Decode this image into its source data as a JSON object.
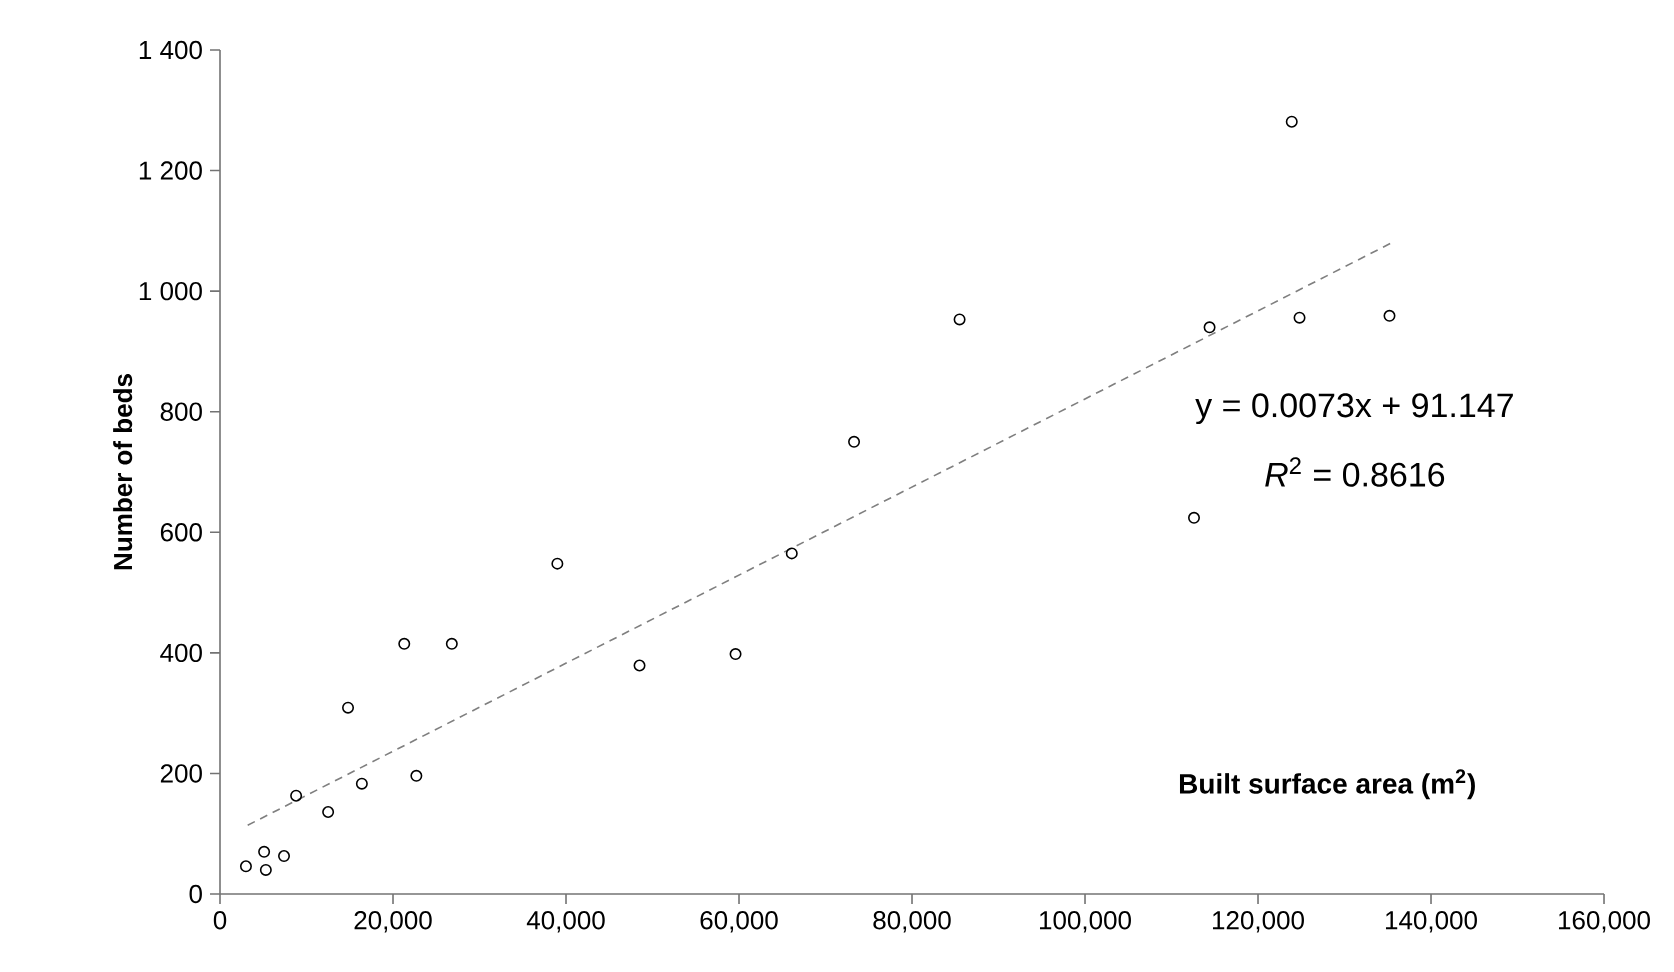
{
  "chart_data": {
    "type": "scatter",
    "xlabel": "Built surface area (m$^{2}$)",
    "ylabel": "Number of beds",
    "xlim": [
      0,
      160000
    ],
    "ylim": [
      0,
      1400
    ],
    "xticks": [
      0,
      {
        "value": 20000,
        "label": "20,000"
      },
      {
        "value": 40000,
        "label": "40,000"
      },
      {
        "value": 60000,
        "label": "60,000"
      },
      {
        "value": 80000,
        "label": "80,000"
      },
      {
        "value": 100000,
        "label": "100,000"
      },
      {
        "value": 120000,
        "label": "120,000"
      },
      {
        "value": 140000,
        "label": "140,000"
      },
      {
        "value": 160000,
        "label": "160,000"
      }
    ],
    "yticks": [
      0,
      200,
      400,
      600,
      800,
      {
        "value": 1000,
        "label": "1 000"
      },
      {
        "value": 1200,
        "label": "1 200"
      },
      {
        "value": 1400,
        "label": "1 400"
      }
    ],
    "series": [
      {
        "marker": "circle",
        "color": "#000000",
        "x": [
          3000,
          5100,
          5300,
          7400,
          8800,
          12500,
          14800,
          16400,
          21300,
          22700,
          26800,
          39000,
          48500,
          59600,
          66100,
          73300,
          85500,
          112600,
          114400,
          123900,
          124800,
          135200
        ],
        "values": [
          46,
          70,
          40,
          63,
          163,
          136,
          309,
          183,
          415,
          196,
          415,
          548,
          379,
          398,
          565,
          750,
          953,
          624,
          940,
          1281,
          956,
          959
        ]
      },
      {
        "type": "line",
        "color": "#7f7f7f",
        "line_style": "dashed",
        "x": [
          3200,
          135700
        ],
        "values": [
          114,
          1082
        ]
      }
    ],
    "annotations": [
      "y = 0.0073x + 91.147",
      "*R*$^{2}$ = 0.8616"
    ]
  }
}
